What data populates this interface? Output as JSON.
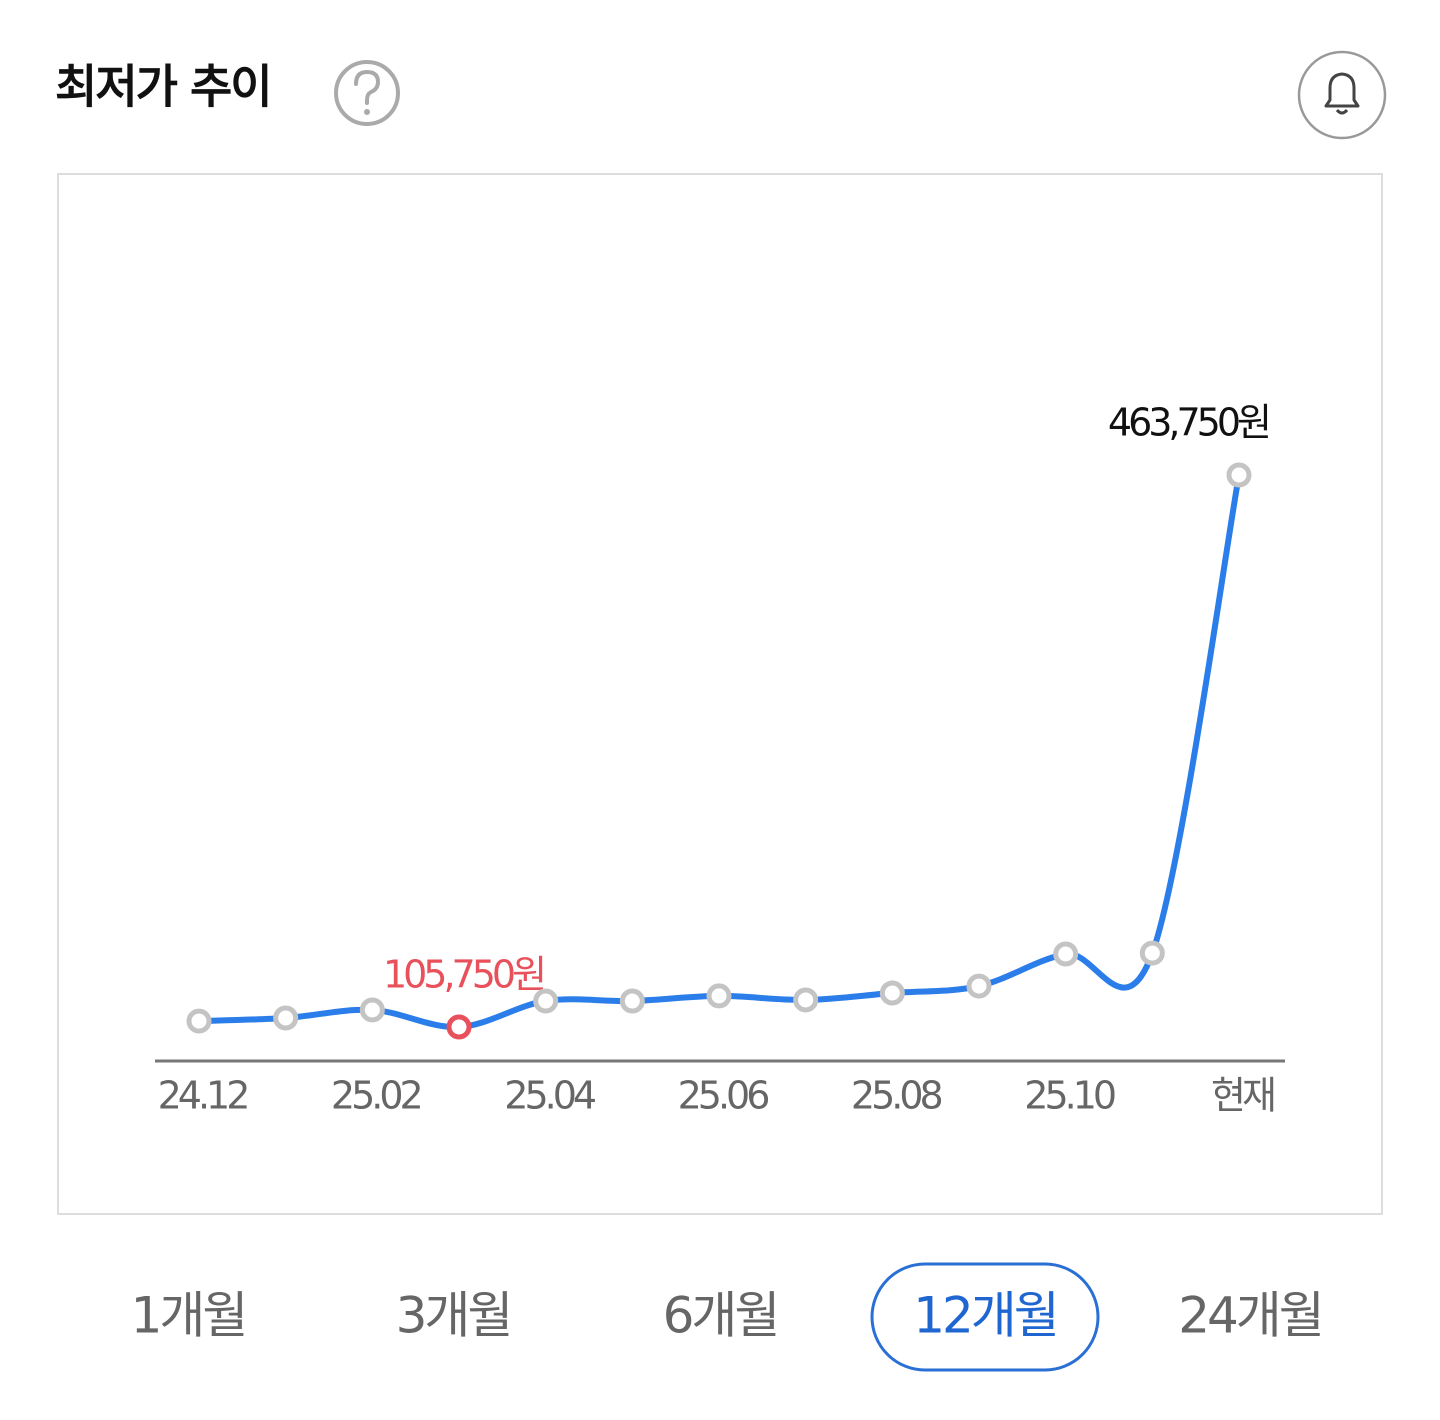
{
  "header": {
    "title": "최저가 추이"
  },
  "chart_data": {
    "type": "line",
    "categories": [
      "24.12",
      null,
      "25.02",
      null,
      "25.04",
      null,
      "25.06",
      null,
      "25.08",
      null,
      "25.10",
      null,
      "현재"
    ],
    "values": [
      109600,
      111600,
      116800,
      105750,
      122600,
      122600,
      125900,
      123300,
      127800,
      132300,
      153100,
      153700,
      463750
    ],
    "value_labels": [
      null,
      null,
      null,
      "105,750원",
      null,
      null,
      null,
      null,
      null,
      null,
      null,
      null,
      "463,750원"
    ],
    "color": "#2b7de9",
    "marker_color": "#c4c4c4",
    "min_color": "#e8505b"
  },
  "tabs": {
    "options": [
      "1개월",
      "3개월",
      "6개월",
      "12개월",
      "24개월"
    ],
    "selected": 3
  }
}
